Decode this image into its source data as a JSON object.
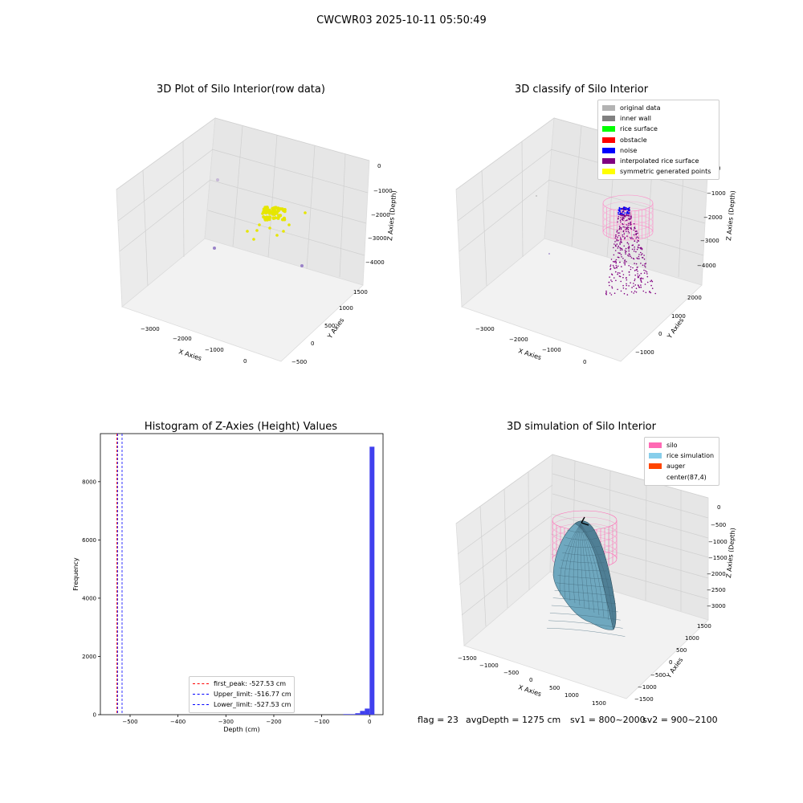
{
  "figure": {
    "suptitle": "CWCWR03 2025-10-11 05:50:49",
    "footer": {
      "flag": "flag = 23",
      "avg_depth": "avgDepth = 1275 cm",
      "sv1": "sv1 = 800~2000",
      "sv2": "sv2 = 900~2100"
    }
  },
  "chart_data": [
    {
      "type": "scatter",
      "projection": "3d",
      "title": "3D Plot of Silo Interior(row data)",
      "xlabel": "X Axies",
      "ylabel": "Y Axies",
      "zlabel": "Z Axies (Depth)",
      "x_ticks": [
        "−3000",
        "−2000",
        "−1000",
        "0"
      ],
      "y_ticks": [
        "−500",
        "0",
        "500",
        "1000",
        "1500"
      ],
      "z_ticks": [
        "0",
        "−1000",
        "−2000",
        "−3000",
        "−4000"
      ],
      "point_color": "#e6e600",
      "grid": true
    },
    {
      "type": "scatter",
      "projection": "3d",
      "title": "3D classify of Silo Interior",
      "xlabel": "X Axies",
      "ylabel": "Y Axies",
      "zlabel": "Z Axies (Depth)",
      "x_ticks": [
        "−3000",
        "−2000",
        "−1000",
        "0"
      ],
      "y_ticks": [
        "−1000",
        "0",
        "1000",
        "2000"
      ],
      "z_ticks": [
        "0",
        "−1000",
        "−2000",
        "−3000",
        "−4000"
      ],
      "legend": [
        {
          "label": "original data",
          "color": "#b3b3b3"
        },
        {
          "label": "inner wall",
          "color": "#808080"
        },
        {
          "label": "rice surface",
          "color": "#00ff00"
        },
        {
          "label": "obstacle",
          "color": "#ff0000"
        },
        {
          "label": "noise",
          "color": "#0000ff"
        },
        {
          "label": "interpolated rice surface",
          "color": "#800080"
        },
        {
          "label": "symmetric generated points",
          "color": "#ffff00"
        }
      ],
      "legend_position": "upper right",
      "grid": true
    },
    {
      "type": "histogram",
      "title": "Histogram of Z-Axies (Height) Values",
      "xlabel": "Depth (cm)",
      "ylabel": "Frequency",
      "xlim": [
        -562,
        28
      ],
      "ylim": [
        0,
        9650
      ],
      "x_ticks": [
        -500,
        -400,
        -300,
        -200,
        -100,
        0
      ],
      "x_tick_labels": [
        "−500",
        "−400",
        "−300",
        "−200",
        "−100",
        "0"
      ],
      "y_ticks": [
        0,
        2000,
        4000,
        6000,
        8000
      ],
      "y_tick_labels": [
        "0",
        "2000",
        "4000",
        "6000",
        "8000"
      ],
      "bar_color": "#4040ee",
      "bars": [
        {
          "x0": -55,
          "x1": -30,
          "count": 20
        },
        {
          "x0": -30,
          "x1": -20,
          "count": 50
        },
        {
          "x0": -20,
          "x1": -10,
          "count": 130
        },
        {
          "x0": -10,
          "x1": 0,
          "count": 210
        },
        {
          "x0": 0,
          "x1": 10,
          "count": 9200
        }
      ],
      "vlines": [
        {
          "x": -527.53,
          "color": "#ff0000",
          "label": "first_peak: -527.53 cm"
        },
        {
          "x": -516.77,
          "color": "#0000ff",
          "label": "Upper_limit: -516.77 cm"
        },
        {
          "x": -527.53,
          "color": "#0000ff",
          "label": "Lower_limit: -527.53 cm"
        }
      ],
      "legend_position": "lower center"
    },
    {
      "type": "surface",
      "projection": "3d",
      "title": "3D simulation of Silo Interior",
      "xlabel": "X Axies",
      "ylabel": "Y Axies",
      "zlabel": "Z Axies (Depth)",
      "x_ticks": [
        "−1500",
        "−1000",
        "−500",
        "0",
        "500",
        "1000",
        "1500"
      ],
      "y_ticks": [
        "−1500",
        "−1000",
        "−500",
        "0",
        "500",
        "1000",
        "1500"
      ],
      "z_ticks": [
        "0",
        "−500",
        "−1000",
        "−1500",
        "−2000",
        "−2500",
        "−3000"
      ],
      "legend": [
        {
          "label": "silo",
          "color": "#ff69b4"
        },
        {
          "label": "rice simulation",
          "color": "#87ceeb"
        },
        {
          "label": "auger",
          "color": "#ff4500"
        },
        {
          "label": "center(87,4)",
          "color": ""
        }
      ],
      "legend_position": "upper right"
    }
  ]
}
